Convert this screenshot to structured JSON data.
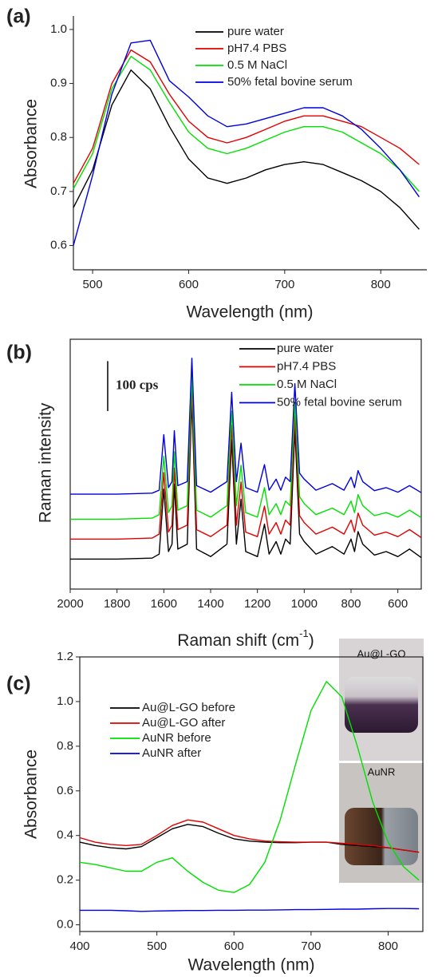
{
  "chart_data": [
    {
      "type": "line",
      "title": "(a)",
      "x_label": "Wavelength (nm)",
      "y_label": "Absorbance",
      "x": [
        480,
        500,
        520,
        540,
        560,
        580,
        600,
        620,
        640,
        660,
        680,
        700,
        720,
        740,
        760,
        780,
        800,
        820,
        840
      ],
      "series": [
        {
          "name": "pure water",
          "color": "#000000",
          "values": [
            0.67,
            0.74,
            0.86,
            0.925,
            0.89,
            0.82,
            0.76,
            0.725,
            0.715,
            0.725,
            0.74,
            0.75,
            0.755,
            0.75,
            0.735,
            0.72,
            0.7,
            0.67,
            0.63
          ]
        },
        {
          "name": "pH7.4 PBS",
          "color": "#e00000",
          "values": [
            0.715,
            0.78,
            0.9,
            0.962,
            0.94,
            0.88,
            0.83,
            0.8,
            0.79,
            0.8,
            0.815,
            0.83,
            0.84,
            0.84,
            0.83,
            0.82,
            0.8,
            0.78,
            0.75
          ]
        },
        {
          "name": "0.5 M NaCl",
          "color": "#00e000",
          "values": [
            0.705,
            0.77,
            0.89,
            0.95,
            0.925,
            0.865,
            0.81,
            0.78,
            0.77,
            0.78,
            0.795,
            0.81,
            0.82,
            0.82,
            0.81,
            0.79,
            0.77,
            0.74,
            0.7
          ]
        },
        {
          "name": "50% fetal bovine serum",
          "color": "#0000e0",
          "values": [
            0.6,
            0.73,
            0.88,
            0.975,
            0.98,
            0.905,
            0.875,
            0.84,
            0.82,
            0.825,
            0.835,
            0.845,
            0.855,
            0.855,
            0.84,
            0.815,
            0.78,
            0.74,
            0.69
          ]
        }
      ],
      "xlim": [
        480,
        848
      ],
      "ylim": [
        0.555,
        1.025
      ],
      "xticks": [
        500,
        600,
        700,
        800
      ],
      "yticks": [
        0.6,
        0.7,
        0.8,
        0.9,
        {
          "value": 1,
          "label": "1.0"
        }
      ]
    },
    {
      "type": "line",
      "title": "(b)",
      "x_label": "Raman shift (cm",
      "x_label_sup": "-1",
      "x_label_end": ")",
      "y_label": "Raman intensity",
      "scale_bar": {
        "value": 100,
        "label": "100 cps"
      },
      "x": [
        2000,
        1800,
        1650,
        1620,
        1600,
        1580,
        1565,
        1555,
        1540,
        1500,
        1480,
        1460,
        1400,
        1330,
        1310,
        1290,
        1270,
        1250,
        1200,
        1170,
        1150,
        1120,
        1100,
        1080,
        1060,
        1040,
        1020,
        1000,
        950,
        880,
        830,
        800,
        785,
        770,
        750,
        700,
        650,
        600,
        550,
        500
      ],
      "series": [
        {
          "name": "pure water",
          "color": "#000000",
          "values": [
            60,
            60,
            62,
            70,
            200,
            75,
            90,
            210,
            80,
            90,
            380,
            80,
            65,
            90,
            300,
            90,
            180,
            75,
            65,
            130,
            70,
            95,
            70,
            100,
            90,
            320,
            110,
            95,
            70,
            85,
            70,
            100,
            75,
            115,
            90,
            68,
            75,
            65,
            80,
            63
          ]
        },
        {
          "name": "pH7.4 PBS",
          "color": "#e00000",
          "values": [
            100,
            100,
            102,
            110,
            233,
            114,
            128,
            242,
            119,
            128,
            404,
            119,
            105,
            128,
            328,
            128,
            214,
            114,
            105,
            166,
            110,
            133,
            110,
            138,
            128,
            347,
            147,
            133,
            110,
            124,
            110,
            138,
            114,
            152,
            128,
            108,
            114,
            105,
            119,
            103
          ]
        },
        {
          "name": "0.5 M NaCl",
          "color": "#00e000",
          "values": [
            140,
            140,
            142,
            149,
            266,
            153,
            167,
            275,
            158,
            167,
            428,
            158,
            144,
            167,
            356,
            167,
            248,
            153,
            144,
            203,
            149,
            171,
            149,
            176,
            167,
            374,
            185,
            171,
            149,
            162,
            149,
            176,
            153,
            189,
            167,
            147,
            153,
            144,
            158,
            143
          ]
        },
        {
          "name": "50% fetal bovine serum",
          "color": "#0000e0",
          "values": [
            190,
            190,
            192,
            198,
            309,
            203,
            215,
            317,
            207,
            215,
            462,
            207,
            194,
            215,
            394,
            215,
            292,
            203,
            194,
            249,
            198,
            220,
            198,
            224,
            215,
            411,
            232,
            220,
            198,
            211,
            198,
            224,
            203,
            237,
            215,
            197,
            203,
            194,
            207,
            193
          ]
        }
      ],
      "xlim": [
        2000,
        500
      ],
      "ylim": [
        0,
        500
      ],
      "xticks": [
        2000,
        1800,
        1600,
        1400,
        1200,
        1000,
        800,
        600
      ]
    },
    {
      "type": "line",
      "title": "(c)",
      "x_label": "Wavelength (nm)",
      "y_label": "Absorbance",
      "inset_labels": [
        "Au@L-GO",
        "AuNR"
      ],
      "x": [
        400,
        420,
        440,
        460,
        480,
        500,
        520,
        540,
        560,
        580,
        600,
        620,
        640,
        660,
        680,
        700,
        720,
        740,
        760,
        780,
        800,
        820,
        840
      ],
      "series": [
        {
          "name": "Au@L-GO before",
          "color": "#000000",
          "values": [
            0.37,
            0.355,
            0.345,
            0.34,
            0.35,
            0.39,
            0.43,
            0.45,
            0.44,
            0.41,
            0.385,
            0.375,
            0.37,
            0.368,
            0.368,
            0.37,
            0.37,
            0.36,
            0.355,
            0.35,
            0.345,
            0.335,
            0.325
          ]
        },
        {
          "name": "Au@L-GO after",
          "color": "#e00000",
          "values": [
            0.39,
            0.37,
            0.36,
            0.355,
            0.36,
            0.4,
            0.445,
            0.47,
            0.46,
            0.43,
            0.4,
            0.385,
            0.375,
            0.372,
            0.37,
            0.37,
            0.37,
            0.365,
            0.36,
            0.355,
            0.345,
            0.335,
            0.325
          ]
        },
        {
          "name": "AuNR before",
          "color": "#00e000",
          "values": [
            0.28,
            0.27,
            0.255,
            0.24,
            0.24,
            0.28,
            0.3,
            0.24,
            0.19,
            0.155,
            0.145,
            0.18,
            0.28,
            0.47,
            0.72,
            0.96,
            1.09,
            1.02,
            0.8,
            0.55,
            0.37,
            0.26,
            0.2
          ]
        },
        {
          "name": "AuNR after",
          "color": "#0000e0",
          "values": [
            0.065,
            0.065,
            0.065,
            0.063,
            0.06,
            0.062,
            0.063,
            0.064,
            0.064,
            0.065,
            0.065,
            0.066,
            0.066,
            0.067,
            0.068,
            0.068,
            0.069,
            0.07,
            0.07,
            0.072,
            0.073,
            0.073,
            0.072
          ]
        }
      ],
      "xlim": [
        400,
        845
      ],
      "ylim": [
        -0.03,
        1.2
      ],
      "xticks": [
        400,
        500,
        600,
        700,
        800
      ],
      "yticks": [
        {
          "value": 0,
          "label": "0.0"
        },
        0.2,
        0.4,
        0.6,
        0.8,
        {
          "value": 1,
          "label": "1.0"
        },
        1.2
      ]
    }
  ]
}
